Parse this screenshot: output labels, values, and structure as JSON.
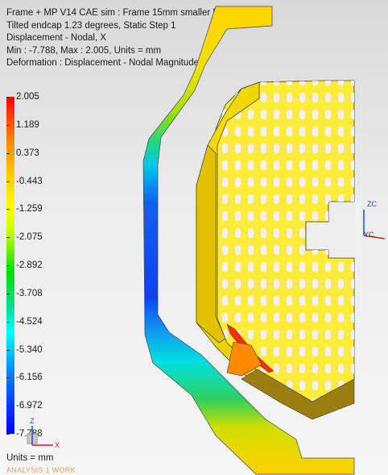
{
  "header": {
    "line1": "Frame + MP V14 CAE sim : Frame 15mm smaller Result",
    "line2": "Tilted endcap 1.23 degrees, Static Step 1",
    "line3": "Displacement - Nodal, X",
    "line4": "Min : -7.788, Max : 2.005, Units = mm",
    "line5": "Deformation : Displacement - Nodal Magnitude"
  },
  "legend": {
    "values": [
      "2.005",
      "1.189",
      "0.373",
      "-0.443",
      "-1.259",
      "-2.075",
      "-2.892",
      "-3.708",
      "-4.524",
      "-5.340",
      "-6.156",
      "-6.972",
      "-7.788"
    ],
    "min": -7.788,
    "max": 2.005
  },
  "units_label": "Units = mm",
  "mode_label": "ANALYSIS 1 WORK",
  "triad_left": {
    "z": "Z",
    "x": "X"
  },
  "triad_right": {
    "zc": "ZC",
    "yc": "YC"
  }
}
